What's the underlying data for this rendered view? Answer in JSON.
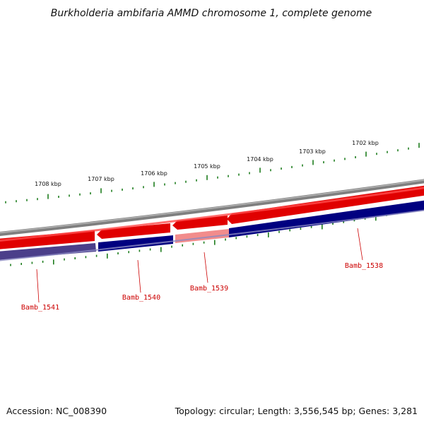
{
  "title": "Burkholderia ambifaria AMMD chromosome 1, complete genome",
  "footer": {
    "accession": "Accession: NC_008390",
    "summary": "Topology: circular; Length: 3,556,545 bp; Genes: 3,281"
  },
  "colors": {
    "backbone": "#808080",
    "forward_strand": "#ff0000",
    "reverse_strand": "#000080",
    "highlight_forward": "#f28c8c",
    "highlight_reverse": "#4b3f8a",
    "tick": "#1e7d1e",
    "gene_label": "#cc0000"
  },
  "ruler_outer": {
    "labels": [
      "1708 kbp",
      "1707 kbp",
      "1706 kbp",
      "1705 kbp",
      "1704 kbp",
      "1703 kbp",
      "1702 kbp"
    ]
  },
  "genes": [
    {
      "name": "Bamb_1541"
    },
    {
      "name": "Bamb_1540"
    },
    {
      "name": "Bamb_1539"
    },
    {
      "name": "Bamb_1538"
    }
  ]
}
